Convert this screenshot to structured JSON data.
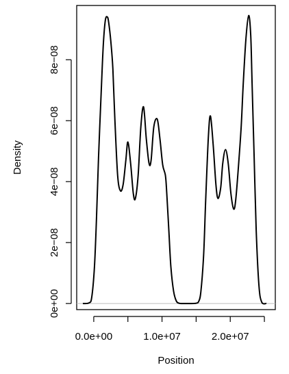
{
  "chart_data": {
    "type": "line",
    "title": "",
    "xlabel": "Position",
    "ylabel": "Density",
    "xlim": [
      -2500000,
      26600000
    ],
    "ylim": [
      -2e-09,
      9.78e-08
    ],
    "x_ticks": [
      {
        "value": 0,
        "label": "0.0e+00"
      },
      {
        "value": 5000000,
        "label": ""
      },
      {
        "value": 10000000,
        "label": "1.0e+07"
      },
      {
        "value": 15000000,
        "label": ""
      },
      {
        "value": 20000000,
        "label": "2.0e+07"
      },
      {
        "value": 25000000,
        "label": ""
      }
    ],
    "y_ticks": [
      {
        "value": 0,
        "label": "0e+00"
      },
      {
        "value": 2e-08,
        "label": "2e−08"
      },
      {
        "value": 4e-08,
        "label": "4e−08"
      },
      {
        "value": 6e-08,
        "label": "6e−08"
      },
      {
        "value": 8e-08,
        "label": "8e−08"
      }
    ],
    "baseline": 0,
    "grid": false,
    "legend": "none",
    "series": [
      {
        "color": "#000000",
        "x": [
          -1600000,
          -700000,
          -300000,
          100000,
          400000,
          700000,
          1100000,
          1400000,
          1700000,
          2000000,
          2200000,
          2500000,
          2800000,
          3100000,
          3500000,
          3900000,
          4300000,
          4700000,
          5000000,
          5400000,
          5800000,
          6100000,
          6500000,
          6900000,
          7300000,
          7700000,
          8100000,
          8400000,
          8800000,
          9300000,
          9700000,
          10100000,
          10500000,
          10700000,
          11000000,
          11300000,
          11700000,
          12100000,
          12500000,
          13000000,
          14000000,
          15000000,
          15400000,
          15700000,
          16100000,
          16400000,
          16800000,
          17100000,
          17500000,
          17900000,
          18200000,
          18600000,
          18900000,
          19300000,
          19700000,
          20100000,
          20500000,
          20800000,
          21200000,
          21600000,
          21900000,
          22300000,
          22700000,
          23000000,
          23200000,
          23500000,
          23800000,
          24200000,
          24600000,
          25300000
        ],
        "y": [
          0,
          2e-10,
          2e-09,
          1.2e-08,
          2.8e-08,
          4.8e-08,
          7e-08,
          8.5e-08,
          9.3e-08,
          9.4e-08,
          9.2e-08,
          8.6e-08,
          7.7e-08,
          6e-08,
          4.2e-08,
          3.7e-08,
          3.9e-08,
          4.7e-08,
          5.3e-08,
          4.6e-08,
          3.6e-08,
          3.45e-08,
          4.2e-08,
          5.8e-08,
          6.45e-08,
          5.4e-08,
          4.6e-08,
          4.7e-08,
          5.8e-08,
          6.05e-08,
          5.4e-08,
          4.55e-08,
          4.2e-08,
          3.6e-08,
          2.4e-08,
          1.2e-08,
          4e-09,
          8e-10,
          1e-10,
          0,
          0,
          1e-10,
          8e-10,
          4e-09,
          1.6e-08,
          3.4e-08,
          5.5e-08,
          6.15e-08,
          5.2e-08,
          3.9e-08,
          3.45e-08,
          3.8e-08,
          4.6e-08,
          5.05e-08,
          4.6e-08,
          3.6e-08,
          3.1e-08,
          3.4e-08,
          4.5e-08,
          5.8e-08,
          7.2e-08,
          8.7e-08,
          9.45e-08,
          8.8e-08,
          7.2e-08,
          4.8e-08,
          2.4e-08,
          6e-09,
          5e-10,
          0
        ]
      }
    ]
  }
}
